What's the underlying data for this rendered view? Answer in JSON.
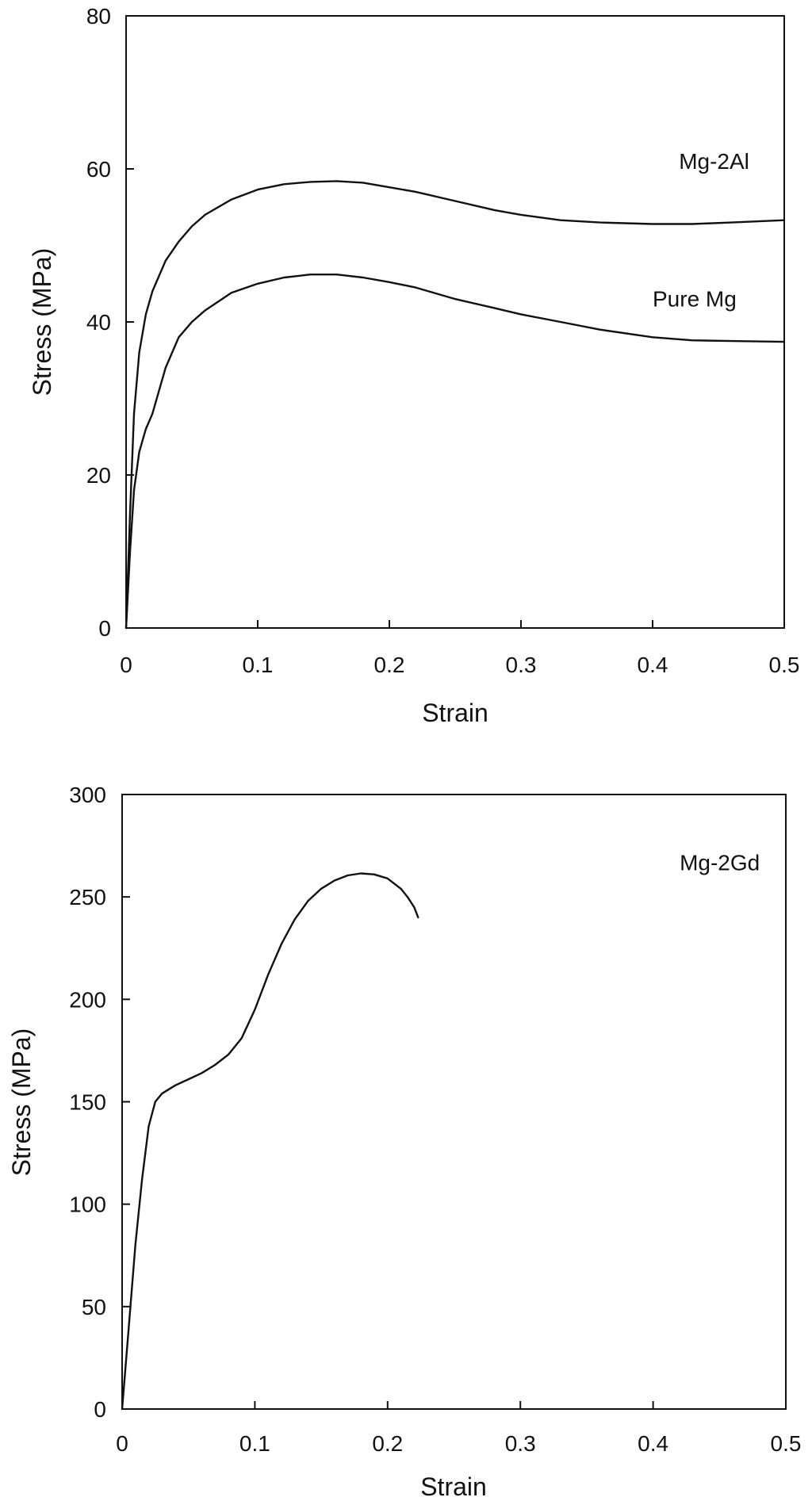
{
  "chart_data": [
    {
      "type": "line",
      "title": "",
      "xlabel": "Strain",
      "ylabel": "Stress (MPa)",
      "xlim": [
        0,
        0.5
      ],
      "ylim": [
        0,
        80
      ],
      "xticks": [
        "0",
        "0.1",
        "0.2",
        "0.3",
        "0.4",
        "0.5"
      ],
      "yticks": [
        "0",
        "20",
        "40",
        "60",
        "80"
      ],
      "grid": false,
      "legend": "none",
      "series": [
        {
          "name": "Mg-2Al",
          "label_at": [
            0.42,
            60
          ],
          "x": [
            0,
            0.003,
            0.006,
            0.01,
            0.015,
            0.02,
            0.03,
            0.04,
            0.05,
            0.06,
            0.08,
            0.1,
            0.12,
            0.14,
            0.16,
            0.18,
            0.2,
            0.22,
            0.25,
            0.28,
            0.3,
            0.33,
            0.36,
            0.4,
            0.43,
            0.46,
            0.5
          ],
          "y": [
            0,
            15,
            28,
            36,
            41,
            44,
            48,
            50.5,
            52.5,
            54,
            56,
            57.3,
            58,
            58.3,
            58.4,
            58.2,
            57.6,
            57,
            55.8,
            54.6,
            54,
            53.3,
            53,
            52.8,
            52.8,
            53,
            53.3
          ]
        },
        {
          "name": "Pure Mg",
          "label_at": [
            0.4,
            42
          ],
          "x": [
            0,
            0.003,
            0.006,
            0.01,
            0.015,
            0.02,
            0.025,
            0.03,
            0.04,
            0.05,
            0.06,
            0.08,
            0.1,
            0.12,
            0.14,
            0.16,
            0.18,
            0.2,
            0.22,
            0.25,
            0.28,
            0.3,
            0.33,
            0.36,
            0.4,
            0.43,
            0.46,
            0.5
          ],
          "y": [
            0,
            10,
            18,
            23,
            26,
            28,
            31,
            34,
            38,
            40,
            41.5,
            43.8,
            45,
            45.8,
            46.2,
            46.2,
            45.8,
            45.2,
            44.5,
            43,
            41.8,
            41,
            40,
            39,
            38,
            37.6,
            37.5,
            37.4
          ]
        }
      ]
    },
    {
      "type": "line",
      "title": "",
      "xlabel": "Strain",
      "ylabel": "Stress (MPa)",
      "xlim": [
        0,
        0.5
      ],
      "ylim": [
        0,
        300
      ],
      "xticks": [
        "0",
        "0.1",
        "0.2",
        "0.3",
        "0.4",
        "0.5"
      ],
      "yticks": [
        "0",
        "50",
        "100",
        "150",
        "200",
        "250",
        "300"
      ],
      "grid": false,
      "legend": "none",
      "series": [
        {
          "name": "Mg-2Gd",
          "label_at": [
            0.42,
            263
          ],
          "x": [
            0,
            0.005,
            0.01,
            0.015,
            0.02,
            0.025,
            0.03,
            0.04,
            0.05,
            0.06,
            0.07,
            0.08,
            0.09,
            0.1,
            0.11,
            0.12,
            0.13,
            0.14,
            0.15,
            0.16,
            0.17,
            0.18,
            0.19,
            0.2,
            0.21,
            0.215,
            0.22,
            0.223
          ],
          "y": [
            0,
            40,
            80,
            112,
            138,
            150,
            154,
            158,
            161,
            164,
            168,
            173,
            181,
            195,
            212,
            227,
            239,
            248,
            254,
            258,
            260.5,
            261.5,
            261,
            259,
            254,
            250,
            245,
            240
          ]
        }
      ]
    }
  ]
}
